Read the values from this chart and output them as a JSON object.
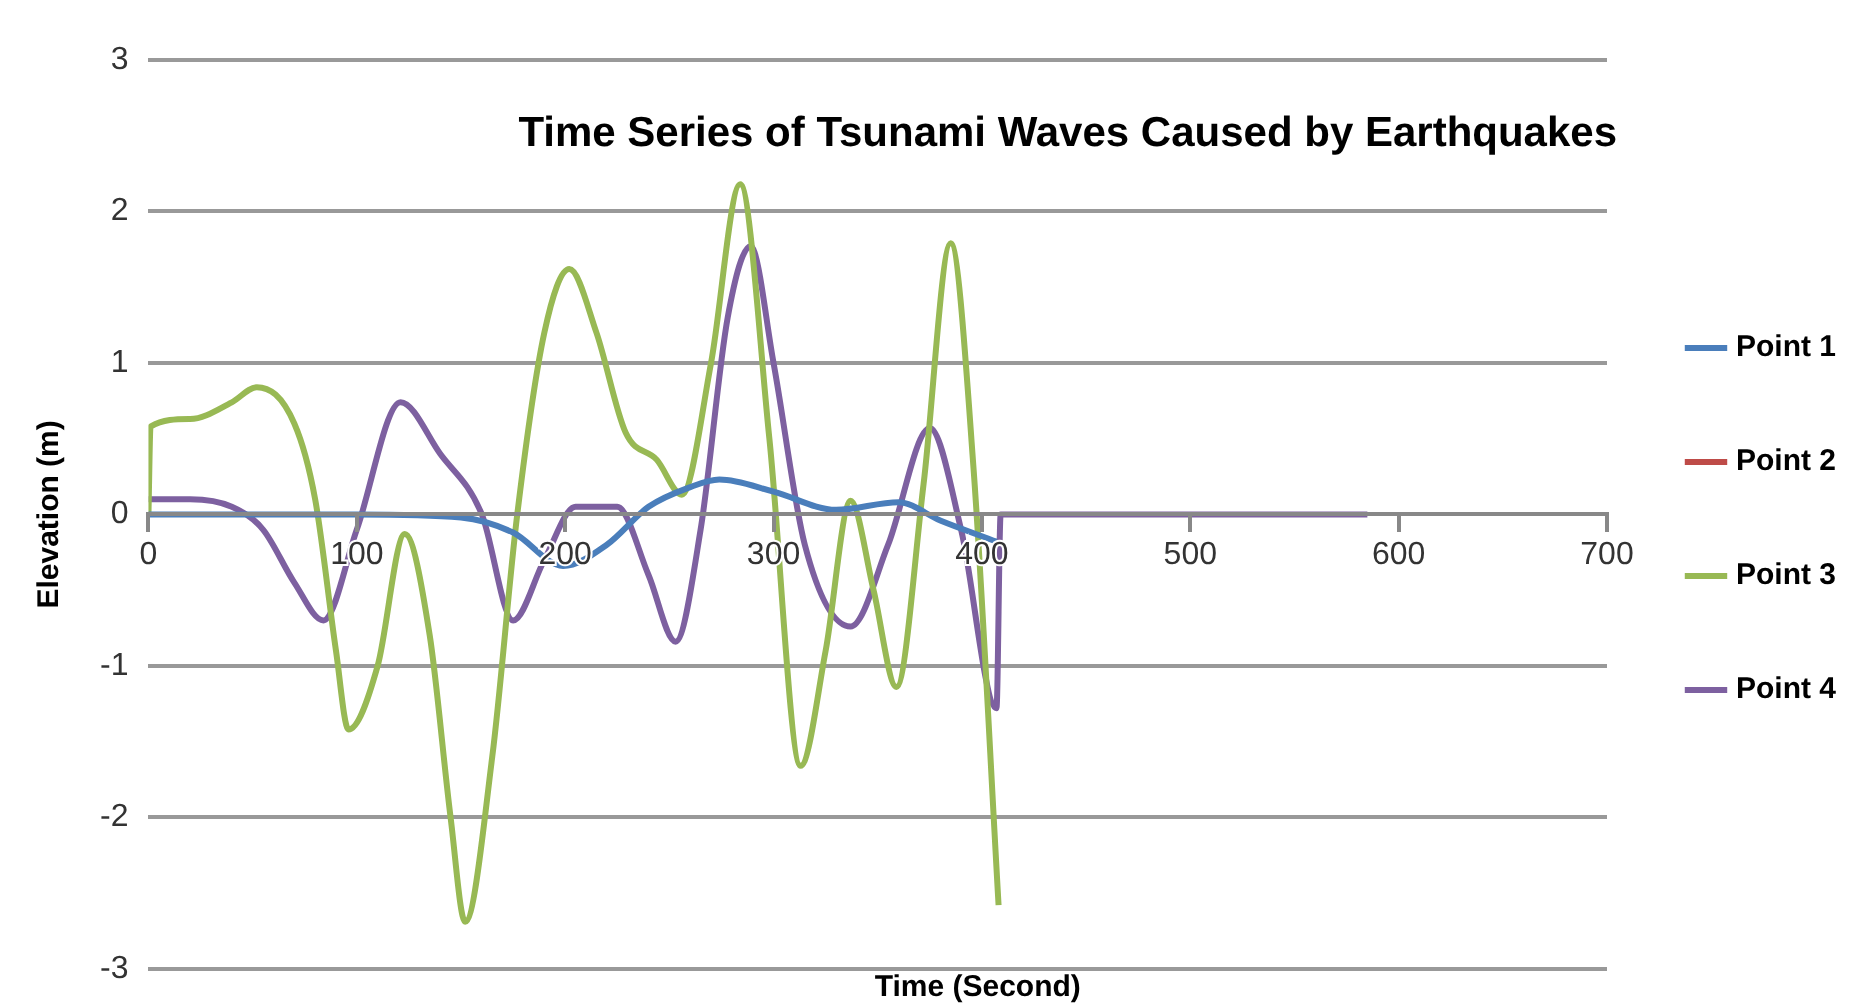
{
  "chart_data": {
    "type": "line",
    "title": "Time Series of Tsunami Waves Caused by Earthquakes",
    "xlabel": "Time (Second)",
    "ylabel": "Elevation (m)",
    "xlim": [
      0,
      700
    ],
    "xticks": [
      0,
      100,
      200,
      300,
      400,
      500,
      600,
      700
    ],
    "ylim": [
      -3,
      3
    ],
    "yticks": [
      -3,
      -2,
      -1,
      0,
      1,
      2,
      3
    ],
    "grid": "y",
    "legend": "right",
    "marker": "none",
    "line_style": "solid",
    "series": [
      {
        "name": "Point 1",
        "color": "#4a7ebb",
        "x": [
          0,
          50,
          100,
          150,
          175,
          199,
          220,
          240,
          260,
          274,
          300,
          330,
          360,
          380,
          407
        ],
        "values": [
          0,
          0,
          0,
          -0.02,
          -0.12,
          -0.34,
          -0.2,
          0.05,
          0.18,
          0.23,
          0.15,
          0.03,
          0.08,
          -0.04,
          -0.18
        ]
      },
      {
        "name": "Point 2",
        "color": "#be4b48"
      },
      {
        "name": "Point 3",
        "color": "#98b954",
        "x": [
          0,
          1,
          20,
          40,
          52,
          70,
          80,
          90,
          96,
          110,
          123,
          135,
          145,
          152,
          165,
          177,
          190,
          202,
          215,
          229,
          244,
          256,
          270,
          284,
          298,
          313,
          325,
          337,
          348,
          359,
          372,
          385,
          396,
          408
        ],
        "values": [
          0,
          0.58,
          0.63,
          0.74,
          0.84,
          0.6,
          0.1,
          -0.9,
          -1.42,
          -1.0,
          -0.13,
          -0.8,
          -2.0,
          -2.69,
          -1.6,
          0,
          1.2,
          1.62,
          1.2,
          0.54,
          0.36,
          0.13,
          1.0,
          2.18,
          0.5,
          -1.66,
          -0.9,
          0.09,
          -0.5,
          -1.14,
          0.2,
          1.79,
          0.3,
          -2.58
        ]
      },
      {
        "name": "Point 4",
        "color": "#7d60a0",
        "x": [
          0,
          20,
          40,
          55,
          70,
          84,
          100,
          121,
          140,
          160,
          175,
          190,
          205,
          225,
          240,
          253,
          265,
          278,
          289,
          300,
          315,
          337,
          355,
          375,
          390,
          407,
          409,
          585
        ],
        "values": [
          0.1,
          0.1,
          0.05,
          -0.1,
          -0.45,
          -0.7,
          -0.1,
          0.74,
          0.4,
          0,
          -0.7,
          -0.3,
          0.05,
          0.05,
          -0.4,
          -0.84,
          -0.1,
          1.3,
          1.77,
          1.0,
          -0.2,
          -0.74,
          -0.2,
          0.57,
          -0.1,
          -1.28,
          0,
          0
        ]
      }
    ]
  }
}
